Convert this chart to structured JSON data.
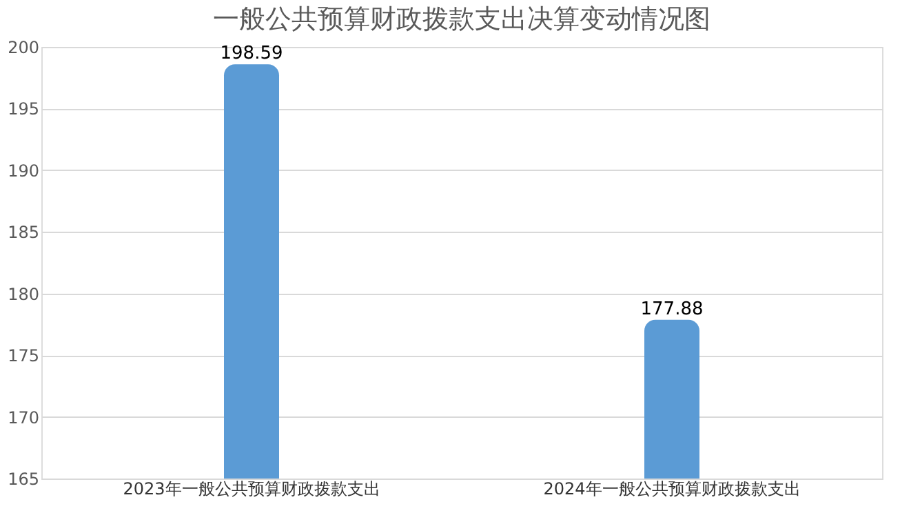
{
  "chart_data": {
    "type": "bar",
    "title": "一般公共预算财政拨款支出决算变动情况图",
    "categories": [
      "2023年一般公共预算财政拨款支出",
      "2024年一般公共预算财政拨款支出"
    ],
    "values": [
      198.59,
      177.88
    ],
    "color": "#5b9bd5",
    "ylim": [
      165,
      200
    ],
    "yticks": [
      165,
      170,
      175,
      180,
      185,
      190,
      195,
      200
    ],
    "grid": "y",
    "data_labels": true
  }
}
